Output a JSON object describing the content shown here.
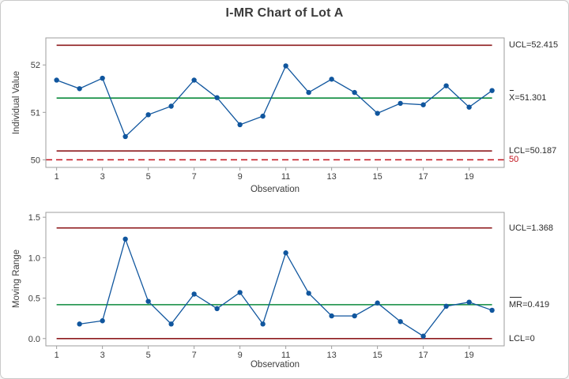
{
  "chart_title": "I-MR Chart of Lot A",
  "colors": {
    "series_blue": "#10569E",
    "limit_red": "#8E1B1E",
    "center_green": "#0B8A3C",
    "ref_red": "#C1121C",
    "frame_gray": "#9E9E9E",
    "tick_text": "#3D3D3D"
  },
  "chart_data": [
    {
      "id": "individuals",
      "type": "line",
      "subtype": "control-chart-individuals",
      "ylabel": "Individual Value",
      "xlabel": "Observation",
      "x": [
        1,
        2,
        3,
        4,
        5,
        6,
        7,
        8,
        9,
        10,
        11,
        12,
        13,
        14,
        15,
        16,
        17,
        18,
        19,
        20
      ],
      "values": [
        51.68,
        51.5,
        51.72,
        50.49,
        50.95,
        51.13,
        51.68,
        51.31,
        50.74,
        50.92,
        51.98,
        51.42,
        51.7,
        51.42,
        50.98,
        51.19,
        51.16,
        51.56,
        51.11,
        51.46
      ],
      "xlim": [
        0.53,
        20.53
      ],
      "ylim": [
        49.84,
        52.57
      ],
      "x_ticks": [
        1,
        3,
        5,
        7,
        9,
        11,
        13,
        15,
        17,
        19
      ],
      "y_ticks": [
        50,
        51,
        52
      ],
      "y_tick_labels": [
        "50",
        "51",
        "52"
      ],
      "line_span": [
        1,
        20
      ],
      "grid": "off",
      "annotations": {
        "ucl": {
          "label": "UCL=52.415",
          "value": 52.415
        },
        "center": {
          "over": "X",
          "label": "=51.301",
          "value": 51.301
        },
        "lcl": {
          "label": "LCL=50.187",
          "value": 50.187
        },
        "ref": {
          "label": "50",
          "value": 50,
          "dashed": true
        }
      }
    },
    {
      "id": "moving-range",
      "type": "line",
      "subtype": "control-chart-moving-range",
      "ylabel": "Moving Range",
      "xlabel": "Observation",
      "x": [
        2,
        3,
        4,
        5,
        6,
        7,
        8,
        9,
        10,
        11,
        12,
        13,
        14,
        15,
        16,
        17,
        18,
        19,
        20
      ],
      "values": [
        0.18,
        0.22,
        1.23,
        0.46,
        0.18,
        0.55,
        0.37,
        0.57,
        0.18,
        1.06,
        0.56,
        0.28,
        0.28,
        0.44,
        0.21,
        0.03,
        0.4,
        0.45,
        0.35
      ],
      "xlim": [
        0.53,
        20.53
      ],
      "ylim": [
        -0.09,
        1.56
      ],
      "x_ticks": [
        1,
        3,
        5,
        7,
        9,
        11,
        13,
        15,
        17,
        19
      ],
      "y_ticks": [
        0,
        0.5,
        1,
        1.5
      ],
      "y_tick_labels": [
        "0.0",
        "0.5",
        "1.0",
        "1.5"
      ],
      "line_span": [
        1,
        20
      ],
      "grid": "off",
      "annotations": {
        "ucl": {
          "label": "UCL=1.368",
          "value": 1.368
        },
        "center": {
          "over": "MR",
          "label": "=0.419",
          "value": 0.419
        },
        "lcl": {
          "label": "LCL=0",
          "value": 0
        }
      }
    }
  ]
}
